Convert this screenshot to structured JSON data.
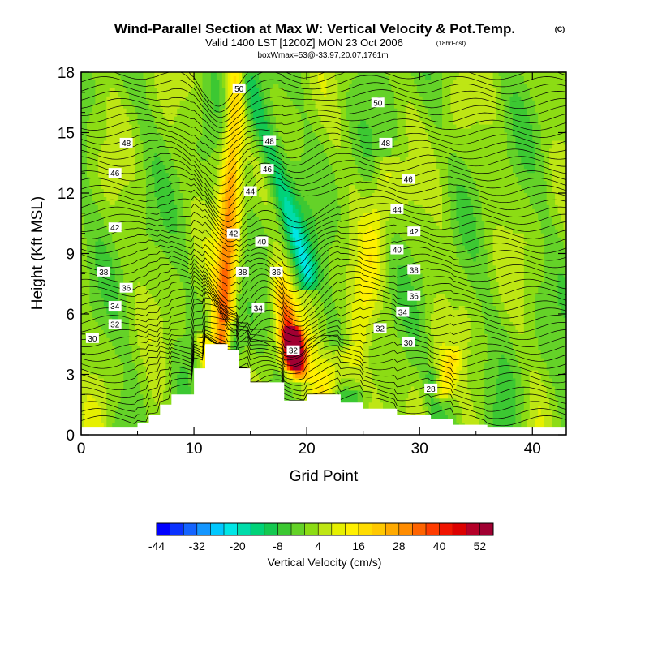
{
  "chart_data": {
    "type": "heatmap",
    "title": "Wind-Parallel Section at Max W: Vertical Velocity & Pot.Temp.",
    "title_mark": "(C)",
    "subtitle": "Valid 1400 LST [1200Z] MON 23 Oct 2006",
    "subtitle_note": "(18hrFcst)",
    "subtitle2": "boxWmax=53@-33.97,20.07,1761m",
    "xlabel": "Grid Point",
    "ylabel": "Height (Kft MSL)",
    "xlim": [
      0,
      43
    ],
    "ylim": [
      0,
      18
    ],
    "x_ticks": [
      0,
      10,
      20,
      30,
      40
    ],
    "y_ticks": [
      0,
      3,
      6,
      9,
      12,
      15,
      18
    ],
    "terrain": [
      [
        0,
        0.4
      ],
      [
        5,
        0.4
      ],
      [
        5,
        0.6
      ],
      [
        6,
        0.6
      ],
      [
        6,
        1.0
      ],
      [
        7,
        1.0
      ],
      [
        7,
        1.5
      ],
      [
        8,
        1.5
      ],
      [
        8,
        2.0
      ],
      [
        10,
        2.0
      ],
      [
        10,
        3.3
      ],
      [
        11,
        3.3
      ],
      [
        11,
        4.5
      ],
      [
        13,
        4.5
      ],
      [
        13,
        4.2
      ],
      [
        14,
        4.2
      ],
      [
        14,
        3.3
      ],
      [
        15,
        3.3
      ],
      [
        15,
        2.6
      ],
      [
        18,
        2.6
      ],
      [
        18,
        1.7
      ],
      [
        20,
        1.7
      ],
      [
        20,
        2.0
      ],
      [
        23,
        2.0
      ],
      [
        23,
        1.6
      ],
      [
        25,
        1.6
      ],
      [
        25,
        1.3
      ],
      [
        28,
        1.3
      ],
      [
        28,
        1.0
      ],
      [
        31,
        1.0
      ],
      [
        31,
        0.8
      ],
      [
        33,
        0.8
      ],
      [
        33,
        0.5
      ],
      [
        36,
        0.5
      ],
      [
        36,
        0.4
      ],
      [
        43,
        0.4
      ]
    ],
    "w_features": [
      {
        "x0": 12.5,
        "x1": 13.8,
        "y0": 4.5,
        "y1": 18,
        "w0": 34,
        "w1": 20,
        "halfwidth": 0.9
      },
      {
        "x0": 18.8,
        "x1": 17.2,
        "y0": 4.0,
        "y1": 9.0,
        "w0": 53,
        "w1": 5,
        "halfwidth": 0.9
      },
      {
        "x0": 19.3,
        "x1": 18.8,
        "y0": 3.0,
        "y1": 5.0,
        "w0": 30,
        "w1": 40,
        "halfwidth": 0.9
      },
      {
        "x0": 20.0,
        "x1": 14.5,
        "y0": 8.0,
        "y1": 18,
        "w0": -22,
        "w1": -14,
        "halfwidth": 1.0
      },
      {
        "x0": 11.3,
        "x1": 10.7,
        "y0": 3.3,
        "y1": 4.8,
        "w0": 18,
        "w1": 14,
        "halfwidth": 0.6
      },
      {
        "x0": 13.5,
        "x1": 13.2,
        "y0": 4.2,
        "y1": 5.5,
        "w0": -16,
        "w1": -10,
        "halfwidth": 0.6
      },
      {
        "x0": 24.0,
        "x1": 27.0,
        "y0": 3.0,
        "y1": 13.0,
        "w0": 10,
        "w1": 8,
        "halfwidth": 1.2
      },
      {
        "x0": 31.2,
        "x1": 31.0,
        "y0": 1.0,
        "y1": 3.0,
        "w0": -6,
        "w1": -6,
        "halfwidth": 0.6
      },
      {
        "x0": 32.0,
        "x1": 33.0,
        "y0": 2.0,
        "y1": 4.0,
        "w0": 14,
        "w1": 10,
        "halfwidth": 0.8
      },
      {
        "x0": 31.5,
        "x1": 33.0,
        "y0": 4.0,
        "y1": 18,
        "w0": 2,
        "w1": 2,
        "halfwidth": 1.0
      },
      {
        "x0": 21.5,
        "x1": 23.0,
        "y0": 2.0,
        "y1": 4.0,
        "w0": 12,
        "w1": 10,
        "halfwidth": 1.3
      }
    ],
    "theta_contour_labels": [
      {
        "x": 14.0,
        "y": 17.2,
        "text": "50"
      },
      {
        "x": 26.3,
        "y": 16.5,
        "text": "50"
      },
      {
        "x": 4.0,
        "y": 14.5,
        "text": "48"
      },
      {
        "x": 16.7,
        "y": 14.6,
        "text": "48"
      },
      {
        "x": 27.0,
        "y": 14.5,
        "text": "48"
      },
      {
        "x": 3.0,
        "y": 13.0,
        "text": "46"
      },
      {
        "x": 16.5,
        "y": 13.2,
        "text": "46"
      },
      {
        "x": 29.0,
        "y": 12.7,
        "text": "46"
      },
      {
        "x": 15.0,
        "y": 12.1,
        "text": "44"
      },
      {
        "x": 28.0,
        "y": 11.2,
        "text": "44"
      },
      {
        "x": 3.0,
        "y": 10.3,
        "text": "42"
      },
      {
        "x": 13.5,
        "y": 10.0,
        "text": "42"
      },
      {
        "x": 29.5,
        "y": 10.1,
        "text": "42"
      },
      {
        "x": 16.0,
        "y": 9.6,
        "text": "40"
      },
      {
        "x": 28.0,
        "y": 9.2,
        "text": "40"
      },
      {
        "x": 2.0,
        "y": 8.1,
        "text": "38"
      },
      {
        "x": 14.3,
        "y": 8.1,
        "text": "38"
      },
      {
        "x": 29.5,
        "y": 8.2,
        "text": "38"
      },
      {
        "x": 4.0,
        "y": 7.3,
        "text": "36"
      },
      {
        "x": 17.3,
        "y": 8.1,
        "text": "36"
      },
      {
        "x": 29.5,
        "y": 6.9,
        "text": "36"
      },
      {
        "x": 3.0,
        "y": 6.4,
        "text": "34"
      },
      {
        "x": 15.7,
        "y": 6.3,
        "text": "34"
      },
      {
        "x": 28.5,
        "y": 6.1,
        "text": "34"
      },
      {
        "x": 3.0,
        "y": 5.5,
        "text": "32"
      },
      {
        "x": 18.8,
        "y": 4.2,
        "text": "32"
      },
      {
        "x": 26.5,
        "y": 5.3,
        "text": "32"
      },
      {
        "x": 1.0,
        "y": 4.8,
        "text": "30"
      },
      {
        "x": 29.0,
        "y": 4.6,
        "text": "30"
      },
      {
        "x": 31.0,
        "y": 2.3,
        "text": "28"
      }
    ],
    "colorbar": {
      "label": "Vertical Velocity (cm/s)",
      "min": -44,
      "max": 56,
      "step": 4,
      "tick_labels": [
        "-44",
        "-32",
        "-20",
        "-8",
        "4",
        "16",
        "28",
        "40",
        "52"
      ],
      "tick_values": [
        -44,
        -32,
        -20,
        -8,
        4,
        16,
        28,
        40,
        52
      ],
      "colors": [
        "#0000ff",
        "#0a32ff",
        "#1464ff",
        "#1496ff",
        "#00c8ff",
        "#00e6e6",
        "#00dcaa",
        "#00d278",
        "#14c850",
        "#3cc832",
        "#64d228",
        "#8cdc14",
        "#bee614",
        "#e6f000",
        "#fff000",
        "#ffdc00",
        "#ffc800",
        "#ffaa00",
        "#ff8c00",
        "#ff6400",
        "#ff3c00",
        "#f01400",
        "#dc0000",
        "#b40028",
        "#a00032"
      ]
    }
  }
}
